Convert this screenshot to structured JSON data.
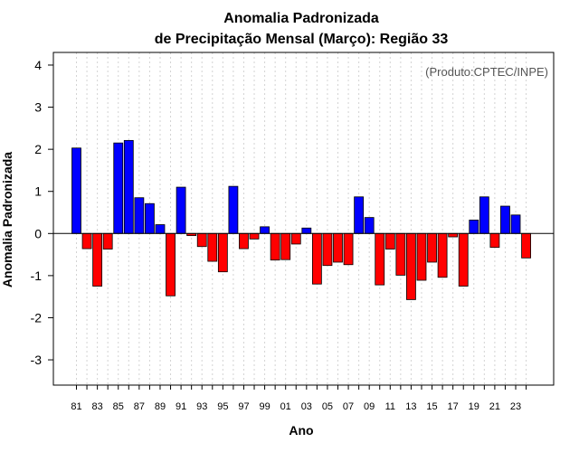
{
  "chart_data": {
    "type": "bar",
    "title_line1": "Anomalia Padronizada",
    "title_line2": "de Precipitação Mensal (Março): Região 33",
    "credit": "(Produto:CPTEC/INPE)",
    "xlabel": "Ano",
    "ylabel": "Anomalia Padronizada",
    "ylim": [
      -3.6,
      4.3
    ],
    "yticks": [
      -3,
      -2,
      -1,
      0,
      1,
      2,
      3,
      4
    ],
    "grid": "vertical dotted",
    "positive_color": "#0000ff",
    "negative_color": "#ff0000",
    "categories": [
      "81",
      "82",
      "83",
      "84",
      "85",
      "86",
      "87",
      "88",
      "89",
      "90",
      "91",
      "92",
      "93",
      "94",
      "95",
      "96",
      "97",
      "98",
      "99",
      "00",
      "01",
      "02",
      "03",
      "04",
      "05",
      "06",
      "07",
      "08",
      "09",
      "10",
      "11",
      "12",
      "13",
      "14",
      "15",
      "16",
      "17",
      "18",
      "19",
      "20",
      "21",
      "22",
      "23",
      "24"
    ],
    "xtick_labels": [
      "81",
      "83",
      "85",
      "87",
      "89",
      "91",
      "93",
      "95",
      "97",
      "99",
      "01",
      "03",
      "05",
      "07",
      "09",
      "11",
      "13",
      "15",
      "17",
      "19",
      "21",
      "23"
    ],
    "values": [
      2.03,
      -0.36,
      -1.25,
      -0.37,
      2.15,
      2.21,
      0.85,
      0.71,
      0.21,
      -1.48,
      1.1,
      -0.05,
      -0.31,
      -0.66,
      -0.91,
      1.12,
      -0.36,
      -0.13,
      0.16,
      -0.63,
      -0.62,
      -0.25,
      0.13,
      -1.2,
      -0.76,
      -0.68,
      -0.74,
      0.87,
      0.38,
      -1.22,
      -0.37,
      -0.99,
      -1.57,
      -1.11,
      -0.68,
      -1.04,
      -0.08,
      -1.25,
      0.32,
      0.87,
      -0.33,
      0.65,
      0.44,
      -0.58
    ]
  }
}
